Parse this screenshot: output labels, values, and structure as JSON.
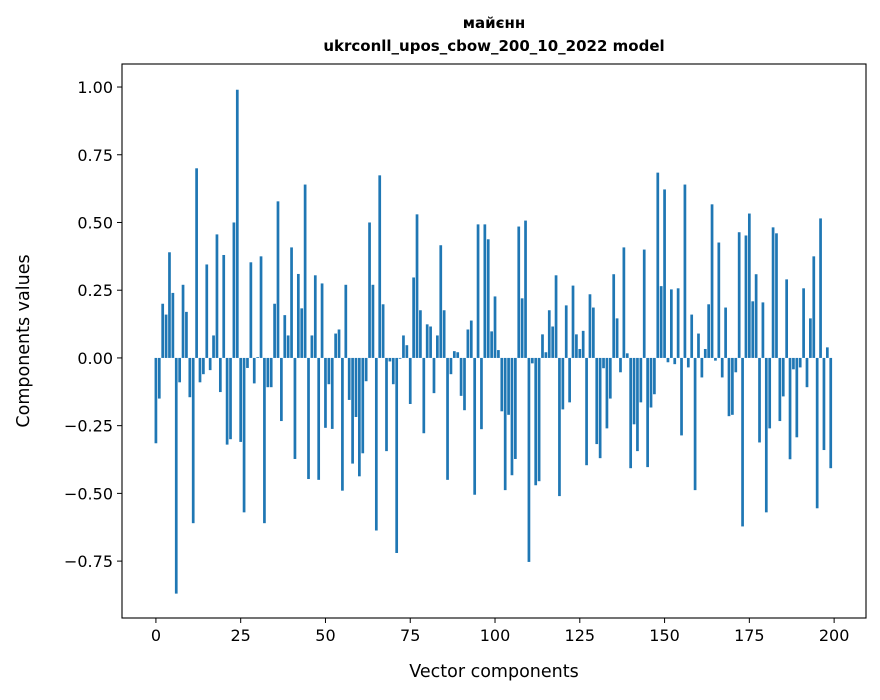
{
  "chart_data": {
    "type": "bar",
    "title": "майєнн",
    "subtitle": "ukrconll_upos_cbow_200_10_2022 model",
    "xlabel": "Vector components",
    "ylabel": "Components values",
    "xlim": [
      -10,
      209.4
    ],
    "ylim": [
      -0.96,
      1.085
    ],
    "xticks": [
      0,
      25,
      50,
      75,
      100,
      125,
      150,
      175,
      200
    ],
    "yticks": [
      -0.75,
      -0.5,
      -0.25,
      0.0,
      0.25,
      0.5,
      0.75,
      1.0
    ],
    "ytick_labels": [
      "−0.75",
      "−0.50",
      "−0.25",
      "0.00",
      "0.25",
      "0.50",
      "0.75",
      "1.00"
    ],
    "grid": false,
    "bar_color": "#1f77b4",
    "values": [
      -0.315,
      -0.15,
      0.2,
      0.16,
      0.39,
      0.24,
      -0.87,
      -0.09,
      0.27,
      0.17,
      -0.145,
      -0.61,
      0.7,
      -0.09,
      -0.06,
      0.345,
      -0.045,
      0.083,
      0.456,
      -0.126,
      0.38,
      -0.32,
      -0.3,
      0.5,
      0.99,
      -0.31,
      -0.57,
      -0.037,
      0.353,
      -0.094,
      0.003,
      0.375,
      -0.61,
      -0.108,
      -0.108,
      0.2,
      0.578,
      -0.233,
      0.158,
      0.083,
      0.408,
      -0.373,
      0.31,
      0.183,
      0.64,
      -0.447,
      0.083,
      0.305,
      -0.45,
      0.275,
      -0.258,
      -0.097,
      -0.262,
      0.09,
      0.105,
      -0.49,
      0.27,
      -0.155,
      -0.39,
      -0.218,
      -0.437,
      -0.352,
      -0.086,
      0.5,
      0.27,
      -0.637,
      0.674,
      0.198,
      -0.344,
      -0.013,
      -0.097,
      -0.72,
      -0.003,
      0.083,
      0.047,
      -0.17,
      0.297,
      0.53,
      0.176,
      -0.278,
      0.124,
      0.116,
      -0.13,
      0.083,
      0.416,
      0.176,
      -0.45,
      -0.06,
      0.025,
      0.021,
      -0.14,
      -0.193,
      0.105,
      0.138,
      -0.505,
      0.493,
      -0.263,
      0.493,
      0.438,
      0.098,
      0.227,
      0.029,
      -0.197,
      -0.488,
      -0.21,
      -0.433,
      -0.373,
      0.485,
      0.22,
      0.507,
      -0.753,
      -0.02,
      -0.47,
      -0.455,
      0.087,
      0.021,
      0.176,
      0.116,
      0.305,
      -0.51,
      -0.19,
      0.194,
      -0.164,
      0.267,
      0.087,
      0.033,
      0.1,
      -0.396,
      0.235,
      0.186,
      -0.318,
      -0.37,
      -0.038,
      -0.26,
      -0.15,
      0.309,
      0.146,
      -0.053,
      0.408,
      0.017,
      -0.407,
      -0.245,
      -0.344,
      -0.164,
      0.4,
      -0.403,
      -0.183,
      -0.134,
      0.684,
      0.265,
      0.622,
      -0.016,
      0.253,
      -0.023,
      0.257,
      -0.286,
      0.64,
      -0.035,
      0.16,
      -0.488,
      0.09,
      -0.072,
      0.033,
      0.198,
      0.567,
      -0.01,
      0.426,
      -0.072,
      0.186,
      -0.215,
      -0.21,
      -0.053,
      0.464,
      -0.622,
      0.452,
      0.533,
      0.209,
      0.309,
      -0.312,
      0.205,
      -0.57,
      -0.26,
      0.482,
      0.46,
      -0.233,
      -0.142,
      0.29,
      -0.374,
      -0.042,
      -0.293,
      -0.035,
      0.257,
      -0.108,
      0.146,
      0.375,
      -0.555,
      0.515,
      -0.34,
      0.039,
      -0.407
    ]
  }
}
